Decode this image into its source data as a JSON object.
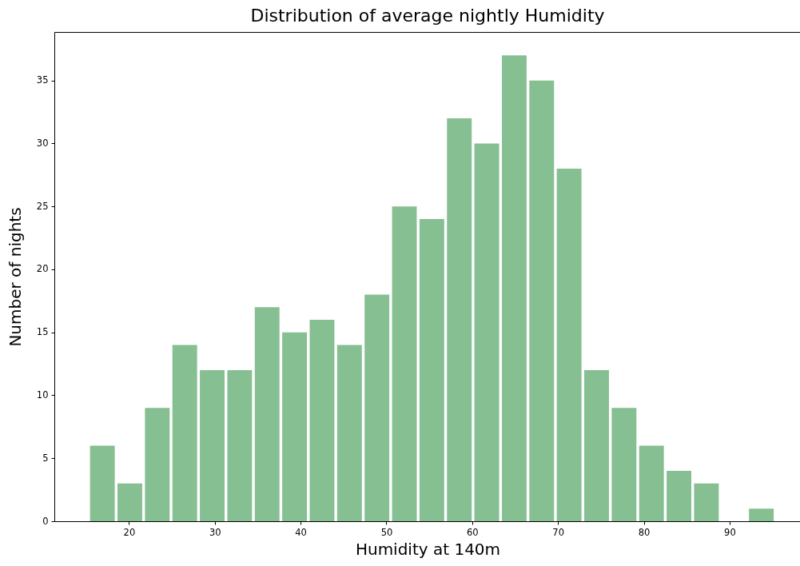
{
  "chart_data": {
    "type": "histogram",
    "title": "Distribution of average nightly Humidity",
    "xlabel": "Humidity at 140m",
    "ylabel": "Number of nights",
    "bins": [
      15.3,
      18.5,
      21.7,
      24.9,
      28.1,
      31.3,
      34.5,
      37.7,
      40.9,
      44.1,
      47.3,
      50.5,
      53.7,
      56.9,
      60.1,
      63.3,
      66.5,
      69.7,
      72.9,
      76.1,
      79.3,
      82.5,
      85.7,
      88.9,
      92.1,
      95.3
    ],
    "values": [
      6,
      3,
      9,
      14,
      12,
      12,
      17,
      15,
      16,
      14,
      18,
      25,
      24,
      32,
      30,
      37,
      35,
      28,
      12,
      9,
      6,
      4,
      3,
      0,
      1
    ],
    "color": "#86bf91",
    "xlim": [
      11.3,
      98.3
    ],
    "ylim": [
      0,
      38.85
    ],
    "xticks": [
      20,
      30,
      40,
      50,
      60,
      70,
      80,
      90
    ],
    "yticks": [
      0,
      5,
      10,
      15,
      20,
      25,
      30,
      35
    ],
    "grid": false
  }
}
